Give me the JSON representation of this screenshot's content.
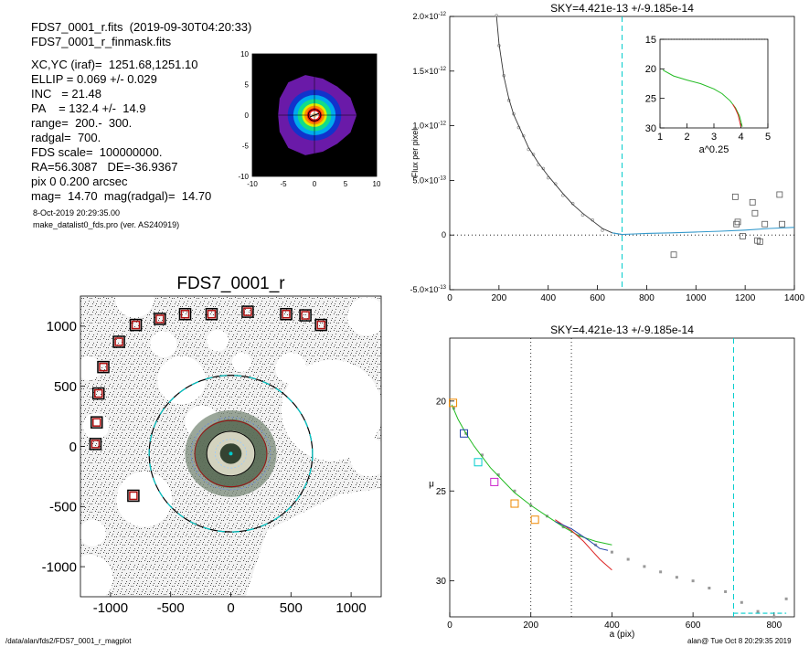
{
  "header": {
    "line1": "FDS7_0001_r.fits  (2019-09-30T04:20:33)",
    "line2": "FDS7_0001_r_finmask.fits",
    "params": [
      "XC,YC (iraf)=  1251.68,1251.10",
      "ELLIP = 0.069 +/- 0.029",
      "INC   = 21.48",
      "PA    = 132.4 +/-  14.9",
      "range=  200.-  300.",
      "radgal=  700.",
      "FDS scale=  100000000.",
      "RA=56.3087   DE=-36.9367",
      "pix 0 0.200 arcsec",
      "mag=  14.70  mag(radgal)=  14.70"
    ],
    "date": "8-Oct-2019 20:29:35.00",
    "program": "make_datalist0_fds.pro (ver. AS240919)"
  },
  "footer": {
    "path": "/data/alan/fds2/FDS7_0001_r_magplot",
    "user": "alan@  Tue Oct  8 20:29:35 2019"
  },
  "colors": {
    "cyan": "#00cccc",
    "green": "#22bb22",
    "red": "#dd2222",
    "blue": "#2244aa",
    "orange": "#ee8800",
    "magenta": "#cc22cc",
    "darkred": "#991111",
    "grey": "#999999"
  },
  "chart_data": [
    {
      "id": "thumbnail",
      "type": "heatmap",
      "xlim": [
        -10,
        10
      ],
      "ylim": [
        -10,
        10
      ],
      "xticks": [
        "-10",
        "-5",
        "0",
        "5",
        "10"
      ],
      "yticks": [
        "-10",
        "-5",
        "0",
        "5",
        "10"
      ]
    },
    {
      "id": "flux",
      "type": "line",
      "title": "SKY=4.421e-13 +/-9.185e-14",
      "ylabel": "Flux per pixel",
      "xlim": [
        0,
        1400
      ],
      "ylim": [
        -5e-13,
        2e-12
      ],
      "xticks": [
        "0",
        "200",
        "400",
        "600",
        "800",
        "1000",
        "1200",
        "1400"
      ],
      "yticks": [
        {
          "v": -5e-13,
          "base": "-5.0×10",
          "exp": "-13"
        },
        {
          "v": 0,
          "base": "0",
          "exp": ""
        },
        {
          "v": 5e-13,
          "base": "5.0×10",
          "exp": "-13"
        },
        {
          "v": 1e-12,
          "base": "1.0×10",
          "exp": "-12"
        },
        {
          "v": 1.5e-12,
          "base": "1.5×10",
          "exp": "-12"
        },
        {
          "v": 2e-12,
          "base": "2.0×10",
          "exp": "-12"
        }
      ],
      "radgal_line": 700,
      "profile": [
        [
          190,
          2e-12
        ],
        [
          200,
          1.75e-12
        ],
        [
          220,
          1.45e-12
        ],
        [
          240,
          1.25e-12
        ],
        [
          260,
          1.1e-12
        ],
        [
          280,
          1e-12
        ],
        [
          300,
          9e-13
        ],
        [
          320,
          8e-13
        ],
        [
          340,
          7.3e-13
        ],
        [
          360,
          6.6e-13
        ],
        [
          380,
          6e-13
        ],
        [
          400,
          5.4e-13
        ],
        [
          430,
          4.6e-13
        ],
        [
          460,
          3.8e-13
        ],
        [
          500,
          2.8e-13
        ],
        [
          540,
          2e-13
        ],
        [
          580,
          1.3e-13
        ],
        [
          620,
          6e-14
        ],
        [
          660,
          2e-14
        ],
        [
          700,
          5e-15
        ],
        [
          750,
          1e-14
        ],
        [
          800,
          1.5e-14
        ],
        [
          900,
          2e-14
        ],
        [
          1000,
          2.8e-14
        ],
        [
          1100,
          3.5e-14
        ],
        [
          1200,
          4.5e-14
        ],
        [
          1300,
          6e-14
        ],
        [
          1400,
          7e-14
        ]
      ],
      "sky_boxes": [
        [
          910,
          -1.8e-13
        ],
        [
          1160,
          3.5e-13
        ],
        [
          1165,
          1e-13
        ],
        [
          1170,
          1.2e-13
        ],
        [
          1190,
          -1e-14
        ],
        [
          1230,
          3e-13
        ],
        [
          1240,
          2e-13
        ],
        [
          1250,
          -5e-14
        ],
        [
          1260,
          -6e-14
        ],
        [
          1280,
          1e-13
        ],
        [
          1340,
          3.7e-13
        ],
        [
          1350,
          1e-13
        ]
      ],
      "inset": {
        "xlabel": "a^0.25",
        "xlim": [
          1,
          5
        ],
        "ylim": [
          15,
          30
        ],
        "xticks": [
          "1",
          "2",
          "3",
          "4",
          "5"
        ],
        "yticks": [
          "15",
          "20",
          "25",
          "30"
        ],
        "green": [
          [
            1.1,
            20.2
          ],
          [
            1.5,
            21.2
          ],
          [
            2.0,
            21.9
          ],
          [
            2.5,
            22.5
          ],
          [
            3.0,
            23.4
          ],
          [
            3.3,
            24.2
          ],
          [
            3.6,
            25.4
          ],
          [
            3.8,
            26.6
          ],
          [
            3.95,
            28.0
          ],
          [
            4.05,
            29.8
          ]
        ],
        "red": [
          [
            3.7,
            26.0
          ],
          [
            3.8,
            26.8
          ],
          [
            3.9,
            27.8
          ],
          [
            3.95,
            28.8
          ],
          [
            4.0,
            29.8
          ]
        ]
      }
    },
    {
      "id": "image",
      "type": "scatter",
      "title": "FDS7_0001_r",
      "xlim": [
        -1250,
        1250
      ],
      "ylim": [
        -1250,
        1250
      ],
      "xticks": [
        "-1000",
        "-500",
        "0",
        "500",
        "1000"
      ],
      "yticks": [
        "-1000",
        "-500",
        "0",
        "500",
        "1000"
      ],
      "sky_boxes": [
        [
          -1125,
          20
        ],
        [
          -1115,
          200
        ],
        [
          -1100,
          440
        ],
        [
          -1060,
          660
        ],
        [
          -930,
          870
        ],
        [
          -790,
          1010
        ],
        [
          -590,
          1060
        ],
        [
          -380,
          1100
        ],
        [
          -160,
          1100
        ],
        [
          140,
          1120
        ],
        [
          460,
          1100
        ],
        [
          620,
          1090
        ],
        [
          750,
          1010
        ],
        [
          -810,
          -410
        ]
      ],
      "ellipses_r": [
        700,
        300,
        200,
        130
      ]
    },
    {
      "id": "mu",
      "type": "line",
      "title": "SKY=4.421e-13 +/-9.185e-14",
      "xlabel": "a (pix)",
      "ylabel": "μ",
      "xlim": [
        0,
        850
      ],
      "ylim": [
        32,
        16.5
      ],
      "xticks": [
        "0",
        "200",
        "400",
        "600",
        "800"
      ],
      "yticks": [
        "20",
        "25",
        "30"
      ],
      "range_lines": [
        200,
        300
      ],
      "radgal_line": 700,
      "green": [
        [
          5,
          20.2
        ],
        [
          20,
          21.0
        ],
        [
          40,
          21.8
        ],
        [
          60,
          22.5
        ],
        [
          80,
          23.1
        ],
        [
          100,
          23.7
        ],
        [
          130,
          24.4
        ],
        [
          160,
          25.1
        ],
        [
          200,
          25.8
        ],
        [
          240,
          26.4
        ],
        [
          280,
          27.0
        ],
        [
          320,
          27.5
        ],
        [
          360,
          27.8
        ],
        [
          400,
          28.0
        ]
      ],
      "red": [
        [
          260,
          26.6
        ],
        [
          300,
          27.2
        ],
        [
          330,
          27.8
        ],
        [
          350,
          28.3
        ],
        [
          370,
          28.8
        ],
        [
          390,
          29.2
        ],
        [
          400,
          29.4
        ]
      ],
      "blue": [
        [
          260,
          26.7
        ],
        [
          300,
          27.1
        ],
        [
          340,
          27.7
        ],
        [
          370,
          28.2
        ],
        [
          390,
          28.3
        ]
      ],
      "grey": [
        [
          10,
          20.4
        ],
        [
          40,
          21.8
        ],
        [
          80,
          23.0
        ],
        [
          120,
          24.1
        ],
        [
          160,
          25.0
        ],
        [
          200,
          25.8
        ],
        [
          240,
          26.4
        ],
        [
          280,
          27.0
        ],
        [
          320,
          27.5
        ],
        [
          360,
          28.0
        ],
        [
          400,
          28.4
        ],
        [
          440,
          28.8
        ],
        [
          480,
          29.2
        ],
        [
          520,
          29.5
        ],
        [
          560,
          29.8
        ],
        [
          600,
          30.0
        ],
        [
          640,
          30.4
        ],
        [
          680,
          30.6
        ],
        [
          720,
          31.2
        ],
        [
          760,
          31.7
        ],
        [
          800,
          32.0
        ],
        [
          830,
          31.0
        ]
      ],
      "markers": [
        [
          8,
          20.1,
          "orange"
        ],
        [
          35,
          21.8,
          "blue"
        ],
        [
          70,
          23.4,
          "cyan"
        ],
        [
          110,
          24.5,
          "magenta"
        ],
        [
          160,
          25.7,
          "orange"
        ],
        [
          210,
          26.6,
          "orange"
        ]
      ]
    }
  ]
}
